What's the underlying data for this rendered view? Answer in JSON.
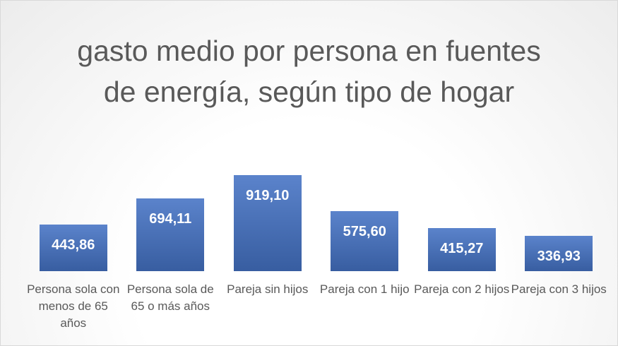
{
  "chart_data": {
    "type": "bar",
    "title": "gasto medio por persona en fuentes de energía, según tipo de hogar",
    "categories": [
      "Persona sola con menos de 65 años",
      "Persona sola de 65 o más años",
      "Pareja sin hijos",
      "Pareja con 1 hijo",
      "Pareja con 2 hijos",
      "Pareja con 3 hijos"
    ],
    "values": [
      443.86,
      694.11,
      919.1,
      575.6,
      415.27,
      336.93
    ],
    "value_labels": [
      "443,86",
      "694,11",
      "919,10",
      "575,60",
      "415,27",
      "336,93"
    ],
    "color": "#4472c4"
  }
}
